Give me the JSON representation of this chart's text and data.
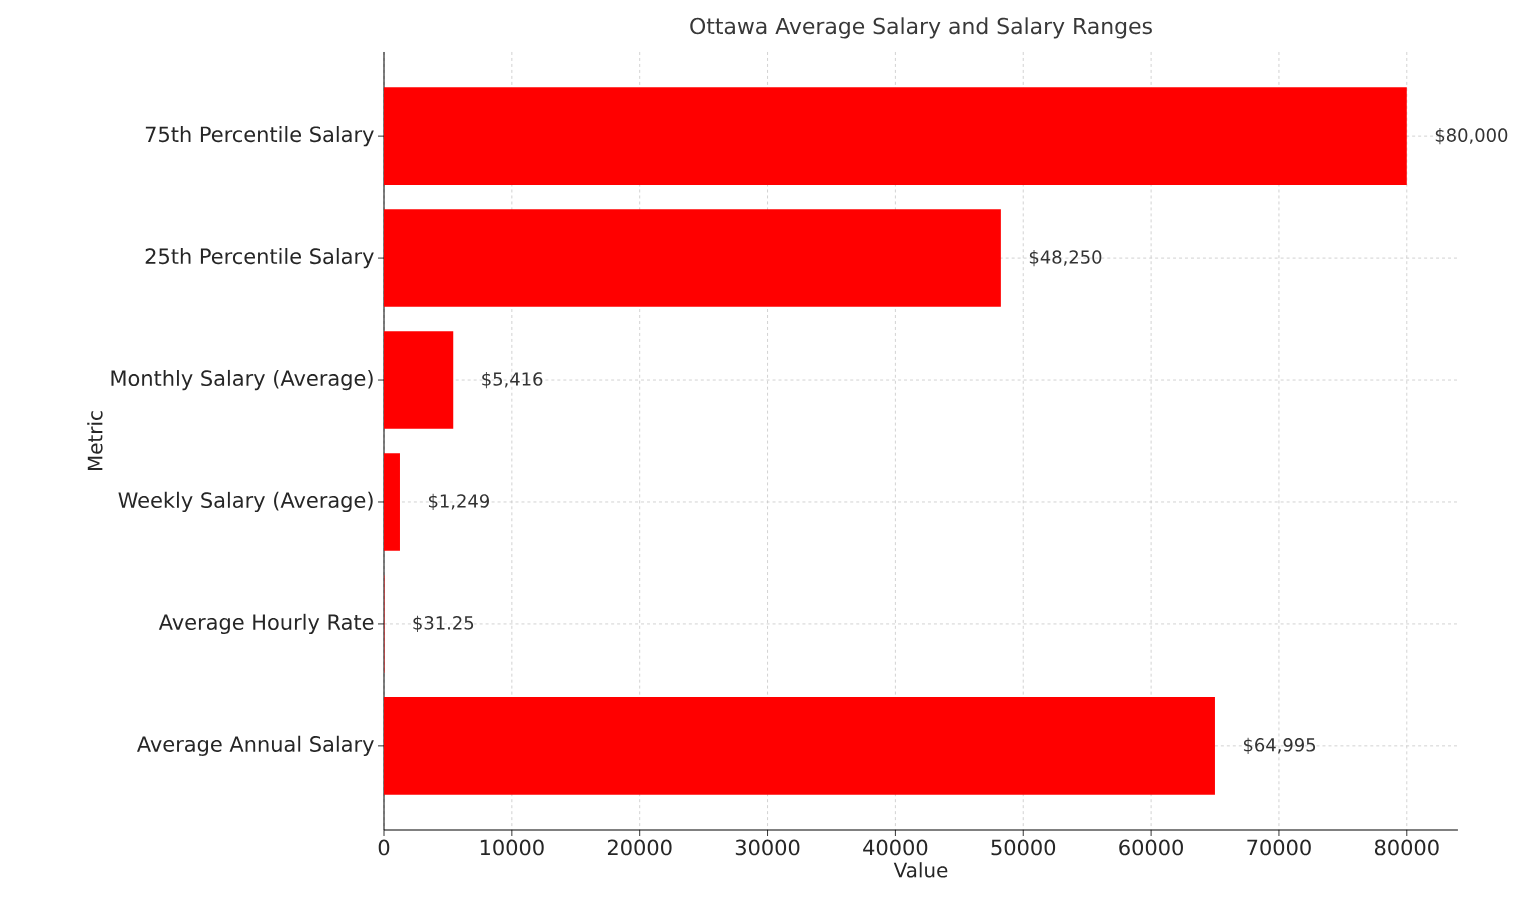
{
  "chart_data": {
    "type": "bar",
    "orientation": "horizontal",
    "title": "Ottawa Average Salary and Salary Ranges",
    "xlabel": "Value",
    "ylabel": "Metric",
    "categories": [
      "75th Percentile Salary",
      "25th Percentile Salary",
      "Monthly Salary (Average)",
      "Weekly Salary (Average)",
      "Average Hourly Rate",
      "Average Annual Salary"
    ],
    "values": [
      80000,
      48250,
      5416,
      1249,
      31.25,
      64995
    ],
    "value_labels": [
      "$80,000",
      "$48,250",
      "$5,416",
      "$1,249",
      "$31.25",
      "$64,995"
    ],
    "color": "#ff0000",
    "xlim": [
      0,
      84000
    ],
    "xticks": [
      0,
      10000,
      20000,
      30000,
      40000,
      50000,
      60000,
      70000,
      80000
    ],
    "grid": true
  }
}
